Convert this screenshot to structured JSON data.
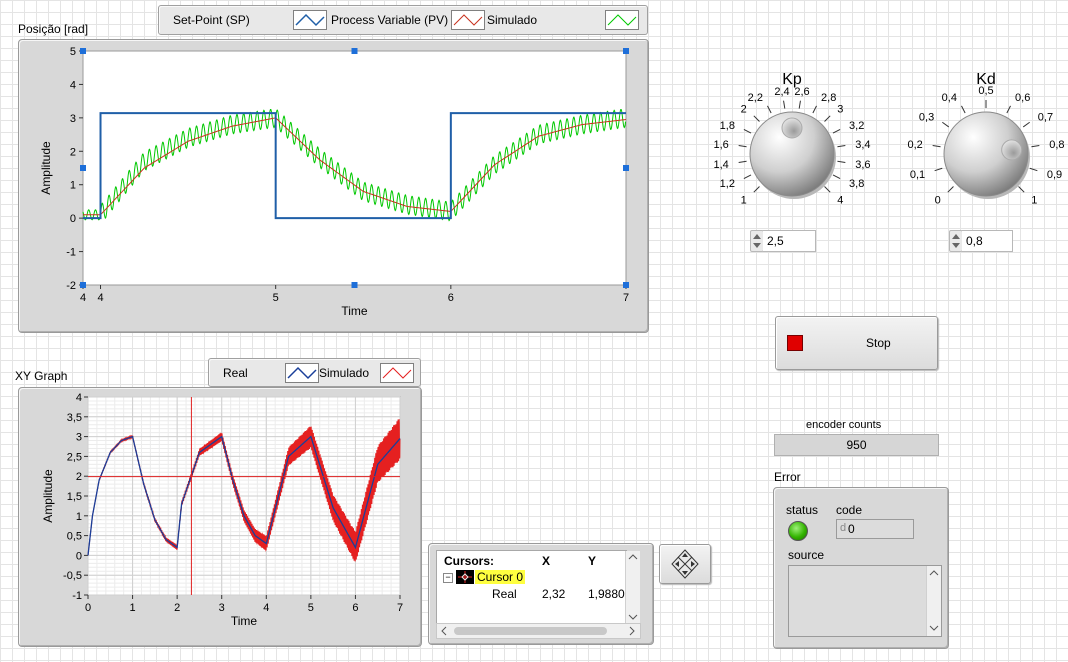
{
  "top_graph": {
    "title": "Posição [rad]",
    "legend": [
      "Set-Point (SP)",
      "Process Variable (PV)",
      "Simulado"
    ],
    "xlabel": "Time",
    "ylabel": "Amplitude",
    "x_ticks": [
      "4",
      "4",
      "5",
      "6",
      "7"
    ],
    "y_ticks": [
      "5",
      "4",
      "3",
      "2",
      "1",
      "0",
      "-1",
      "-2"
    ]
  },
  "xy_graph": {
    "title": "XY Graph",
    "legend": [
      "Real",
      "Simulado"
    ],
    "xlabel": "Time",
    "ylabel": "Amplitude",
    "x_ticks": [
      "0",
      "1",
      "2",
      "3",
      "4",
      "5",
      "6",
      "7"
    ],
    "y_ticks": [
      "4",
      "3,5",
      "3",
      "2,5",
      "2",
      "1,5",
      "1",
      "0,5",
      "0",
      "-0,5",
      "-1"
    ]
  },
  "cursors": {
    "header": "Cursors:",
    "col_x": "X",
    "col_y": "Y",
    "cursor_name": "Cursor 0",
    "plot_name": "Real",
    "x_value": "2,32",
    "y_value": "1,98804",
    "cursor_x": 2.32,
    "cursor_y": 1.98804
  },
  "kp": {
    "title": "Kp",
    "ticks": [
      "1",
      "1,2",
      "1,4",
      "1,6",
      "1,8",
      "2",
      "2,2",
      "2,4",
      "2,6",
      "2,8",
      "3",
      "3,2",
      "3,4",
      "3,6",
      "3,8",
      "4"
    ],
    "value": "2,5",
    "value_num": 2.5,
    "min": 1,
    "max": 4
  },
  "kd": {
    "title": "Kd",
    "ticks": [
      "0",
      "0,1",
      "0,2",
      "0,3",
      "0,4",
      "0,5",
      "0,6",
      "0,7",
      "0,8",
      "0,9",
      "1"
    ],
    "value": "0,8",
    "value_num": 0.8,
    "min": 0,
    "max": 1
  },
  "stop": {
    "label": "Stop",
    "led_color": "#e00000"
  },
  "encoder": {
    "label": "encoder counts",
    "value": "950"
  },
  "error": {
    "title": "Error",
    "status_label": "status",
    "code_label": "code",
    "code_prefix": "d",
    "code_value": "0",
    "source_label": "source",
    "status_color": "#33b400"
  },
  "colors": {
    "sp": "#1f5fa8",
    "pv": "#00c800",
    "sim": "#c8321e",
    "xy_real": "#1a3f9a",
    "xy_sim": "#e52020",
    "cursor_line": "#e02020"
  },
  "chart_data": [
    {
      "type": "line",
      "title": "Posição [rad]",
      "xlabel": "Time",
      "ylabel": "Amplitude",
      "xlim": [
        3.9,
        7
      ],
      "ylim": [
        -2,
        5
      ],
      "series": [
        {
          "name": "Set-Point (SP)",
          "x": [
            3.9,
            4.0,
            4.0,
            5.0,
            5.0,
            6.0,
            6.0,
            7.0
          ],
          "y": [
            0,
            0,
            3.14,
            3.14,
            0,
            0,
            3.14,
            3.14
          ]
        },
        {
          "name": "Process Variable (PV)",
          "x": [
            3.9,
            4.0,
            4.25,
            4.5,
            4.75,
            5.0,
            5.25,
            5.5,
            5.75,
            6.0,
            6.25,
            6.5,
            6.75,
            7.0
          ],
          "y": [
            0.1,
            0.1,
            1.7,
            2.4,
            2.8,
            3.0,
            1.8,
            0.8,
            0.4,
            0.2,
            1.6,
            2.5,
            2.8,
            3.0
          ]
        },
        {
          "name": "Simulado",
          "x": [
            3.9,
            4.0,
            4.25,
            4.5,
            4.75,
            5.0,
            5.25,
            5.5,
            5.75,
            6.0,
            6.25,
            6.5,
            6.75,
            7.0
          ],
          "y": [
            0.1,
            0.1,
            1.5,
            2.3,
            2.75,
            3.0,
            1.75,
            0.8,
            0.35,
            0.2,
            1.6,
            2.45,
            2.8,
            2.95
          ]
        }
      ]
    },
    {
      "type": "line",
      "title": "XY Graph",
      "xlabel": "Time",
      "ylabel": "Amplitude",
      "xlim": [
        0,
        7
      ],
      "ylim": [
        -1,
        4
      ],
      "series": [
        {
          "name": "Real",
          "x": [
            0,
            0.1,
            0.25,
            0.5,
            0.75,
            1.0,
            1.25,
            1.5,
            1.75,
            2.0,
            2.1,
            2.5,
            3.0,
            3.25,
            3.5,
            3.75,
            4.0,
            4.5,
            5.0,
            5.5,
            6.0,
            6.5,
            7.0
          ],
          "y": [
            0,
            1.0,
            1.9,
            2.6,
            2.9,
            3.0,
            1.8,
            0.9,
            0.4,
            0.2,
            1.3,
            2.6,
            3.0,
            1.9,
            1.0,
            0.5,
            0.3,
            2.5,
            3.0,
            1.2,
            0.2,
            2.3,
            2.95
          ]
        },
        {
          "name": "Simulado",
          "x": [
            0,
            0.1,
            0.25,
            0.5,
            0.75,
            1.0,
            1.25,
            1.5,
            1.75,
            2.0,
            2.1,
            2.5,
            3.0,
            3.25,
            3.5,
            3.75,
            4.0,
            4.5,
            5.0,
            5.5,
            6.0,
            6.5,
            7.0
          ],
          "y": [
            0,
            1.0,
            1.9,
            2.6,
            2.9,
            3.0,
            1.8,
            0.9,
            0.4,
            0.2,
            1.3,
            2.6,
            3.0,
            1.9,
            1.0,
            0.5,
            0.3,
            2.5,
            3.0,
            1.2,
            0.2,
            2.3,
            2.95
          ]
        }
      ]
    }
  ]
}
